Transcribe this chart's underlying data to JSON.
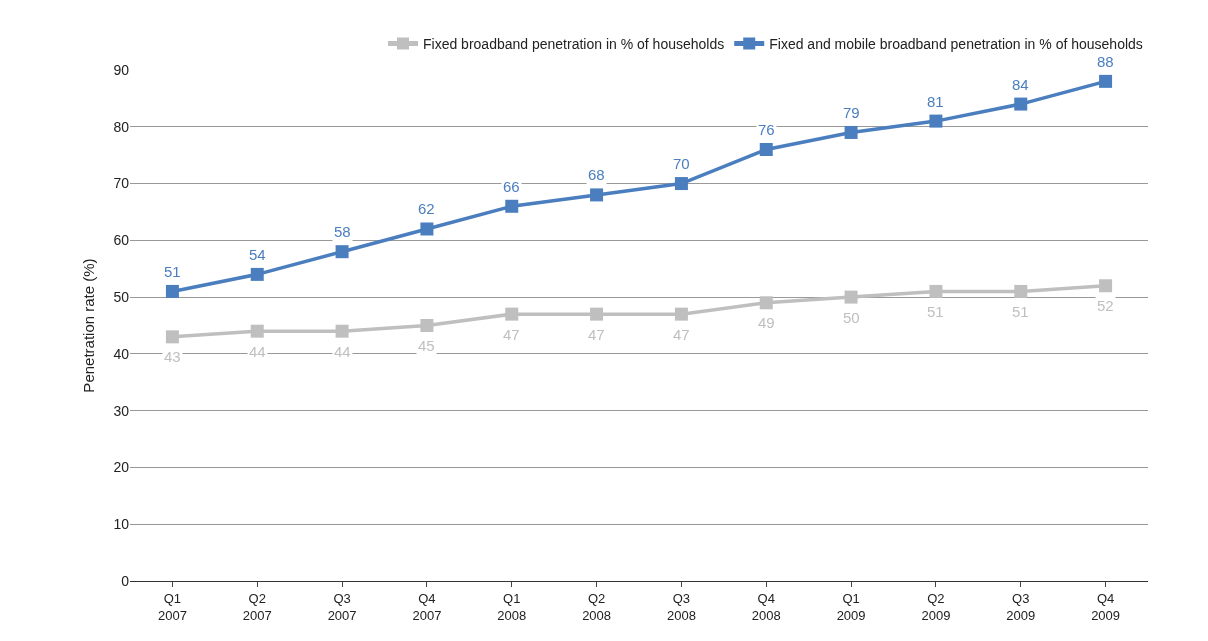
{
  "chart_data": {
    "type": "line",
    "ylabel": "Penetration rate (%)",
    "categories": [
      "Q1\n2007",
      "Q2\n2007",
      "Q3\n2007",
      "Q4\n2007",
      "Q1\n2008",
      "Q2\n2008",
      "Q3\n2008",
      "Q4\n2008",
      "Q1\n2009",
      "Q2\n2009",
      "Q3\n2009",
      "Q4\n2009"
    ],
    "series": [
      {
        "name": "Fixed broadband penetration in % of households",
        "color": "#bfbfbf",
        "values": [
          43,
          44,
          44,
          45,
          47,
          47,
          47,
          49,
          50,
          51,
          51,
          52
        ]
      },
      {
        "name": "Fixed and mobile broadband penetration in % of households",
        "color": "#4a7ebf",
        "values": [
          51,
          54,
          58,
          62,
          66,
          68,
          70,
          76,
          79,
          81,
          84,
          88
        ]
      }
    ],
    "ylim": [
      0,
      90
    ],
    "yticks": [
      0,
      10,
      20,
      30,
      40,
      50,
      60,
      70,
      80,
      90
    ],
    "grid": "y",
    "legend": "top right",
    "marker": "square",
    "line_style": "solid",
    "data_labels": true
  }
}
